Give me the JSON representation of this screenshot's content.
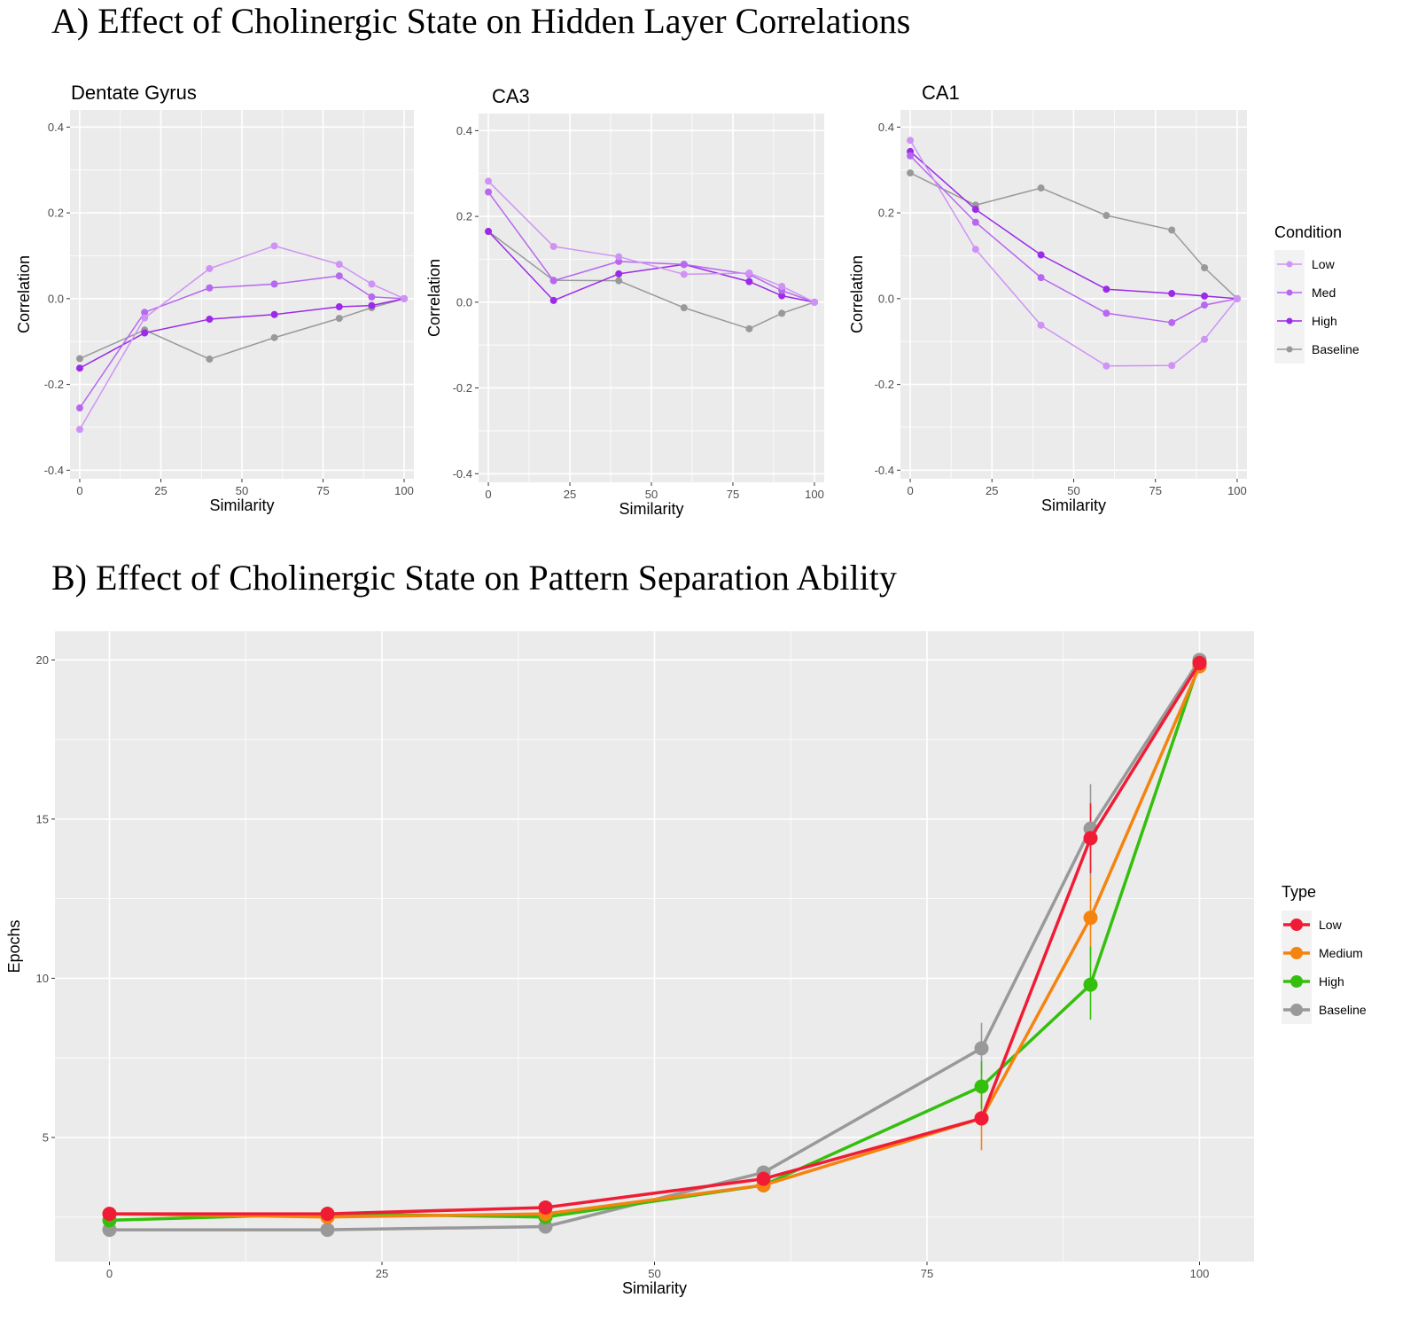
{
  "title_a": "A) Effect of Cholinergic State on Hidden Layer Correlations",
  "title_b": "B) Effect of Cholinergic State on Pattern Separation Ability",
  "chart_data": [
    {
      "type": "line",
      "title": "Dentate Gyrus",
      "xlabel": "Similarity",
      "ylabel": "Correlation",
      "xlim": [
        -3,
        103
      ],
      "ylim": [
        -0.42,
        0.44
      ],
      "xticks": [
        0,
        25,
        50,
        75,
        100
      ],
      "yticks": [
        -0.4,
        -0.2,
        0.0,
        0.2,
        0.4
      ],
      "ytick_labels": [
        "-0.4",
        "-0.2",
        "0.0",
        "0.2",
        "0.4"
      ],
      "x": [
        0,
        20,
        40,
        60,
        80,
        90,
        100
      ],
      "series": [
        {
          "name": "Low",
          "color": "#cf93f5",
          "values": [
            -0.305,
            -0.045,
            0.07,
            0.123,
            0.08,
            0.034,
            0.0
          ]
        },
        {
          "name": "Med",
          "color": "#b767f0",
          "values": [
            -0.255,
            -0.032,
            0.025,
            0.034,
            0.053,
            0.004,
            0.0
          ]
        },
        {
          "name": "High",
          "color": "#9b2be8",
          "values": [
            -0.162,
            -0.08,
            -0.048,
            -0.037,
            -0.019,
            -0.016,
            0.0
          ]
        },
        {
          "name": "Baseline",
          "color": "#999999",
          "values": [
            -0.14,
            -0.073,
            -0.141,
            -0.091,
            -0.046,
            -0.021,
            0.0
          ]
        }
      ]
    },
    {
      "type": "line",
      "title": "CA3",
      "xlabel": "Similarity",
      "ylabel": "Correlation",
      "xlim": [
        -3,
        103
      ],
      "ylim": [
        -0.42,
        0.44
      ],
      "xticks": [
        0,
        25,
        50,
        75,
        100
      ],
      "yticks": [
        -0.4,
        -0.2,
        0.0,
        0.2,
        0.4
      ],
      "ytick_labels": [
        "-0.4",
        "-0.2",
        "0.0",
        "0.2",
        "0.4"
      ],
      "x": [
        0,
        20,
        40,
        60,
        80,
        90,
        100
      ],
      "series": [
        {
          "name": "Low",
          "color": "#cf93f5",
          "values": [
            0.282,
            0.13,
            0.106,
            0.065,
            0.068,
            0.037,
            0.0
          ]
        },
        {
          "name": "Med",
          "color": "#b767f0",
          "values": [
            0.257,
            0.05,
            0.095,
            0.088,
            0.065,
            0.027,
            0.0
          ]
        },
        {
          "name": "High",
          "color": "#9b2be8",
          "values": [
            0.165,
            0.004,
            0.066,
            0.088,
            0.048,
            0.015,
            0.0
          ]
        },
        {
          "name": "Baseline",
          "color": "#999999",
          "values": [
            0.165,
            0.051,
            0.05,
            -0.013,
            -0.062,
            -0.026,
            0.0
          ]
        }
      ]
    },
    {
      "type": "line",
      "title": "CA1",
      "xlabel": "Similarity",
      "ylabel": "Correlation",
      "xlim": [
        -3,
        103
      ],
      "ylim": [
        -0.42,
        0.44
      ],
      "xticks": [
        0,
        25,
        50,
        75,
        100
      ],
      "yticks": [
        -0.4,
        -0.2,
        0.0,
        0.2,
        0.4
      ],
      "ytick_labels": [
        "-0.4",
        "-0.2",
        "0.0",
        "0.2",
        "0.4"
      ],
      "x": [
        0,
        20,
        40,
        60,
        80,
        90,
        100
      ],
      "series": [
        {
          "name": "Low",
          "color": "#cf93f5",
          "values": [
            0.369,
            0.115,
            -0.062,
            -0.157,
            -0.156,
            -0.095,
            0.0
          ]
        },
        {
          "name": "Med",
          "color": "#b767f0",
          "values": [
            0.333,
            0.178,
            0.049,
            -0.034,
            -0.056,
            -0.015,
            0.0
          ]
        },
        {
          "name": "High",
          "color": "#9b2be8",
          "values": [
            0.343,
            0.208,
            0.102,
            0.022,
            0.012,
            0.006,
            0.0
          ]
        },
        {
          "name": "Baseline",
          "color": "#999999",
          "values": [
            0.293,
            0.218,
            0.258,
            0.194,
            0.16,
            0.072,
            0.0
          ]
        }
      ]
    },
    {
      "type": "line",
      "title": "",
      "xlabel": "Similarity",
      "ylabel": "Epochs",
      "xlim": [
        -5,
        105
      ],
      "ylim": [
        1.1,
        20.9
      ],
      "xticks": [
        0,
        25,
        50,
        75,
        100
      ],
      "yticks": [
        5,
        10,
        15,
        20
      ],
      "ytick_labels": [
        "5",
        "10",
        "15",
        "20"
      ],
      "x": [
        0,
        20,
        40,
        60,
        80,
        90,
        100
      ],
      "series": [
        {
          "name": "Low",
          "color": "#f01c35",
          "values": [
            2.6,
            2.6,
            2.8,
            3.7,
            5.6,
            14.4,
            19.9
          ]
        },
        {
          "name": "Medium",
          "color": "#f5830f",
          "values": [
            2.6,
            2.5,
            2.6,
            3.5,
            5.6,
            11.9,
            19.8
          ]
        },
        {
          "name": "High",
          "color": "#35bf0d",
          "values": [
            2.4,
            2.6,
            2.5,
            3.5,
            6.6,
            9.8,
            19.9
          ]
        },
        {
          "name": "Baseline",
          "color": "#999999",
          "values": [
            2.1,
            2.1,
            2.2,
            3.9,
            7.8,
            14.7,
            20.0
          ]
        }
      ],
      "error_bars": [
        {
          "series": "Baseline",
          "x": 80,
          "low": 7.0,
          "high": 8.6
        },
        {
          "series": "Baseline",
          "x": 90,
          "low": 13.2,
          "high": 16.1
        },
        {
          "series": "Low",
          "x": 90,
          "low": 13.3,
          "high": 15.5
        },
        {
          "series": "Medium",
          "x": 80,
          "low": 4.6,
          "high": 6.5
        },
        {
          "series": "Medium",
          "x": 90,
          "low": 10.6,
          "high": 13.2
        },
        {
          "series": "High",
          "x": 80,
          "low": 5.9,
          "high": 7.4
        },
        {
          "series": "High",
          "x": 90,
          "low": 8.7,
          "high": 11.0
        },
        {
          "series": "Baseline",
          "x": 60,
          "low": 3.7,
          "high": 4.1
        }
      ]
    }
  ],
  "legend_a": {
    "title": "Condition",
    "items": [
      {
        "label": "Low",
        "color": "#cf93f5"
      },
      {
        "label": "Med",
        "color": "#b767f0"
      },
      {
        "label": "High",
        "color": "#9b2be8"
      },
      {
        "label": "Baseline",
        "color": "#999999"
      }
    ]
  },
  "legend_b": {
    "title": "Type",
    "items": [
      {
        "label": "Low",
        "color": "#f01c35"
      },
      {
        "label": "Medium",
        "color": "#f5830f"
      },
      {
        "label": "High",
        "color": "#35bf0d"
      },
      {
        "label": "Baseline",
        "color": "#999999"
      }
    ]
  }
}
